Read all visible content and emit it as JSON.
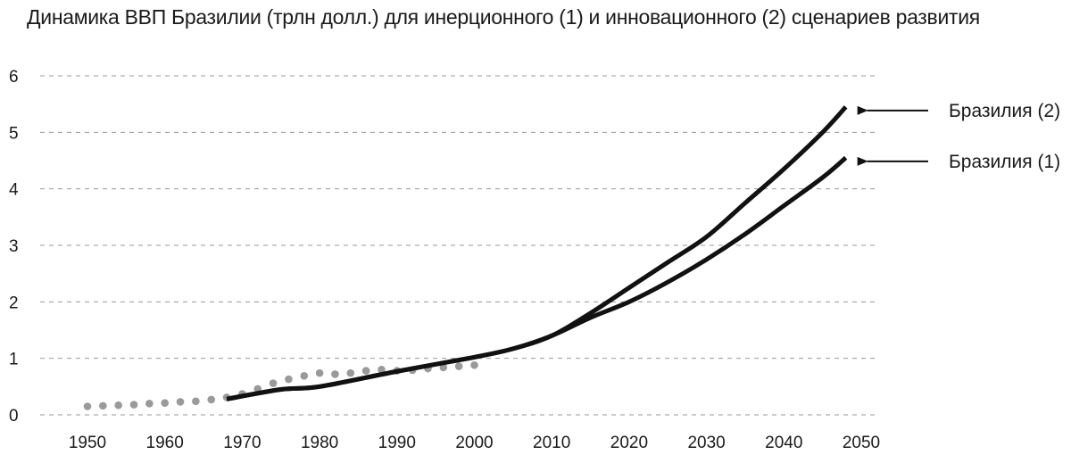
{
  "chart_data": {
    "type": "line",
    "title": "Динамика ВВП Бразилии (трлн долл.) для инерционного (1) и инновационного (2) сценариев развития",
    "xlabel": "",
    "ylabel": "",
    "xlim": [
      1945,
      2052
    ],
    "ylim": [
      0,
      6
    ],
    "x_ticks": [
      "1950",
      "1960",
      "1970",
      "1980",
      "1990",
      "2000",
      "2010",
      "2020",
      "2030",
      "2040",
      "2050"
    ],
    "y_ticks": [
      "0",
      "1",
      "2",
      "3",
      "4",
      "5",
      "6"
    ],
    "grid": "horizontal dashed",
    "colors": {
      "lines": "#111111",
      "dots": "#9a9a9a",
      "grid": "#9a9a9a"
    },
    "historical": {
      "style": "dotted gray",
      "points": [
        [
          1950,
          0.15
        ],
        [
          1952,
          0.16
        ],
        [
          1954,
          0.17
        ],
        [
          1956,
          0.18
        ],
        [
          1958,
          0.2
        ],
        [
          1960,
          0.21
        ],
        [
          1962,
          0.23
        ],
        [
          1964,
          0.24
        ],
        [
          1966,
          0.27
        ],
        [
          1968,
          0.31
        ],
        [
          1970,
          0.37
        ],
        [
          1972,
          0.46
        ],
        [
          1974,
          0.56
        ],
        [
          1976,
          0.63
        ],
        [
          1978,
          0.69
        ],
        [
          1980,
          0.74
        ],
        [
          1982,
          0.72
        ],
        [
          1984,
          0.74
        ],
        [
          1986,
          0.78
        ],
        [
          1988,
          0.8
        ],
        [
          1990,
          0.78
        ],
        [
          1992,
          0.79
        ],
        [
          1994,
          0.82
        ],
        [
          1996,
          0.84
        ],
        [
          1998,
          0.86
        ],
        [
          2000,
          0.88
        ]
      ]
    },
    "series": [
      {
        "name": "Бразилия (1)",
        "points": [
          [
            1968,
            0.28
          ],
          [
            1975,
            0.45
          ],
          [
            1980,
            0.5
          ],
          [
            1990,
            0.77
          ],
          [
            2000,
            1.02
          ],
          [
            2005,
            1.17
          ],
          [
            2010,
            1.4
          ],
          [
            2015,
            1.72
          ],
          [
            2020,
            2.0
          ],
          [
            2025,
            2.35
          ],
          [
            2030,
            2.75
          ],
          [
            2035,
            3.2
          ],
          [
            2040,
            3.7
          ],
          [
            2045,
            4.2
          ],
          [
            2048,
            4.55
          ]
        ]
      },
      {
        "name": "Бразилия (2)",
        "points": [
          [
            1968,
            0.28
          ],
          [
            1975,
            0.45
          ],
          [
            1980,
            0.5
          ],
          [
            1990,
            0.77
          ],
          [
            2000,
            1.02
          ],
          [
            2005,
            1.17
          ],
          [
            2010,
            1.4
          ],
          [
            2015,
            1.8
          ],
          [
            2020,
            2.25
          ],
          [
            2025,
            2.7
          ],
          [
            2030,
            3.15
          ],
          [
            2035,
            3.75
          ],
          [
            2040,
            4.35
          ],
          [
            2045,
            5.0
          ],
          [
            2048,
            5.45
          ]
        ]
      }
    ]
  }
}
